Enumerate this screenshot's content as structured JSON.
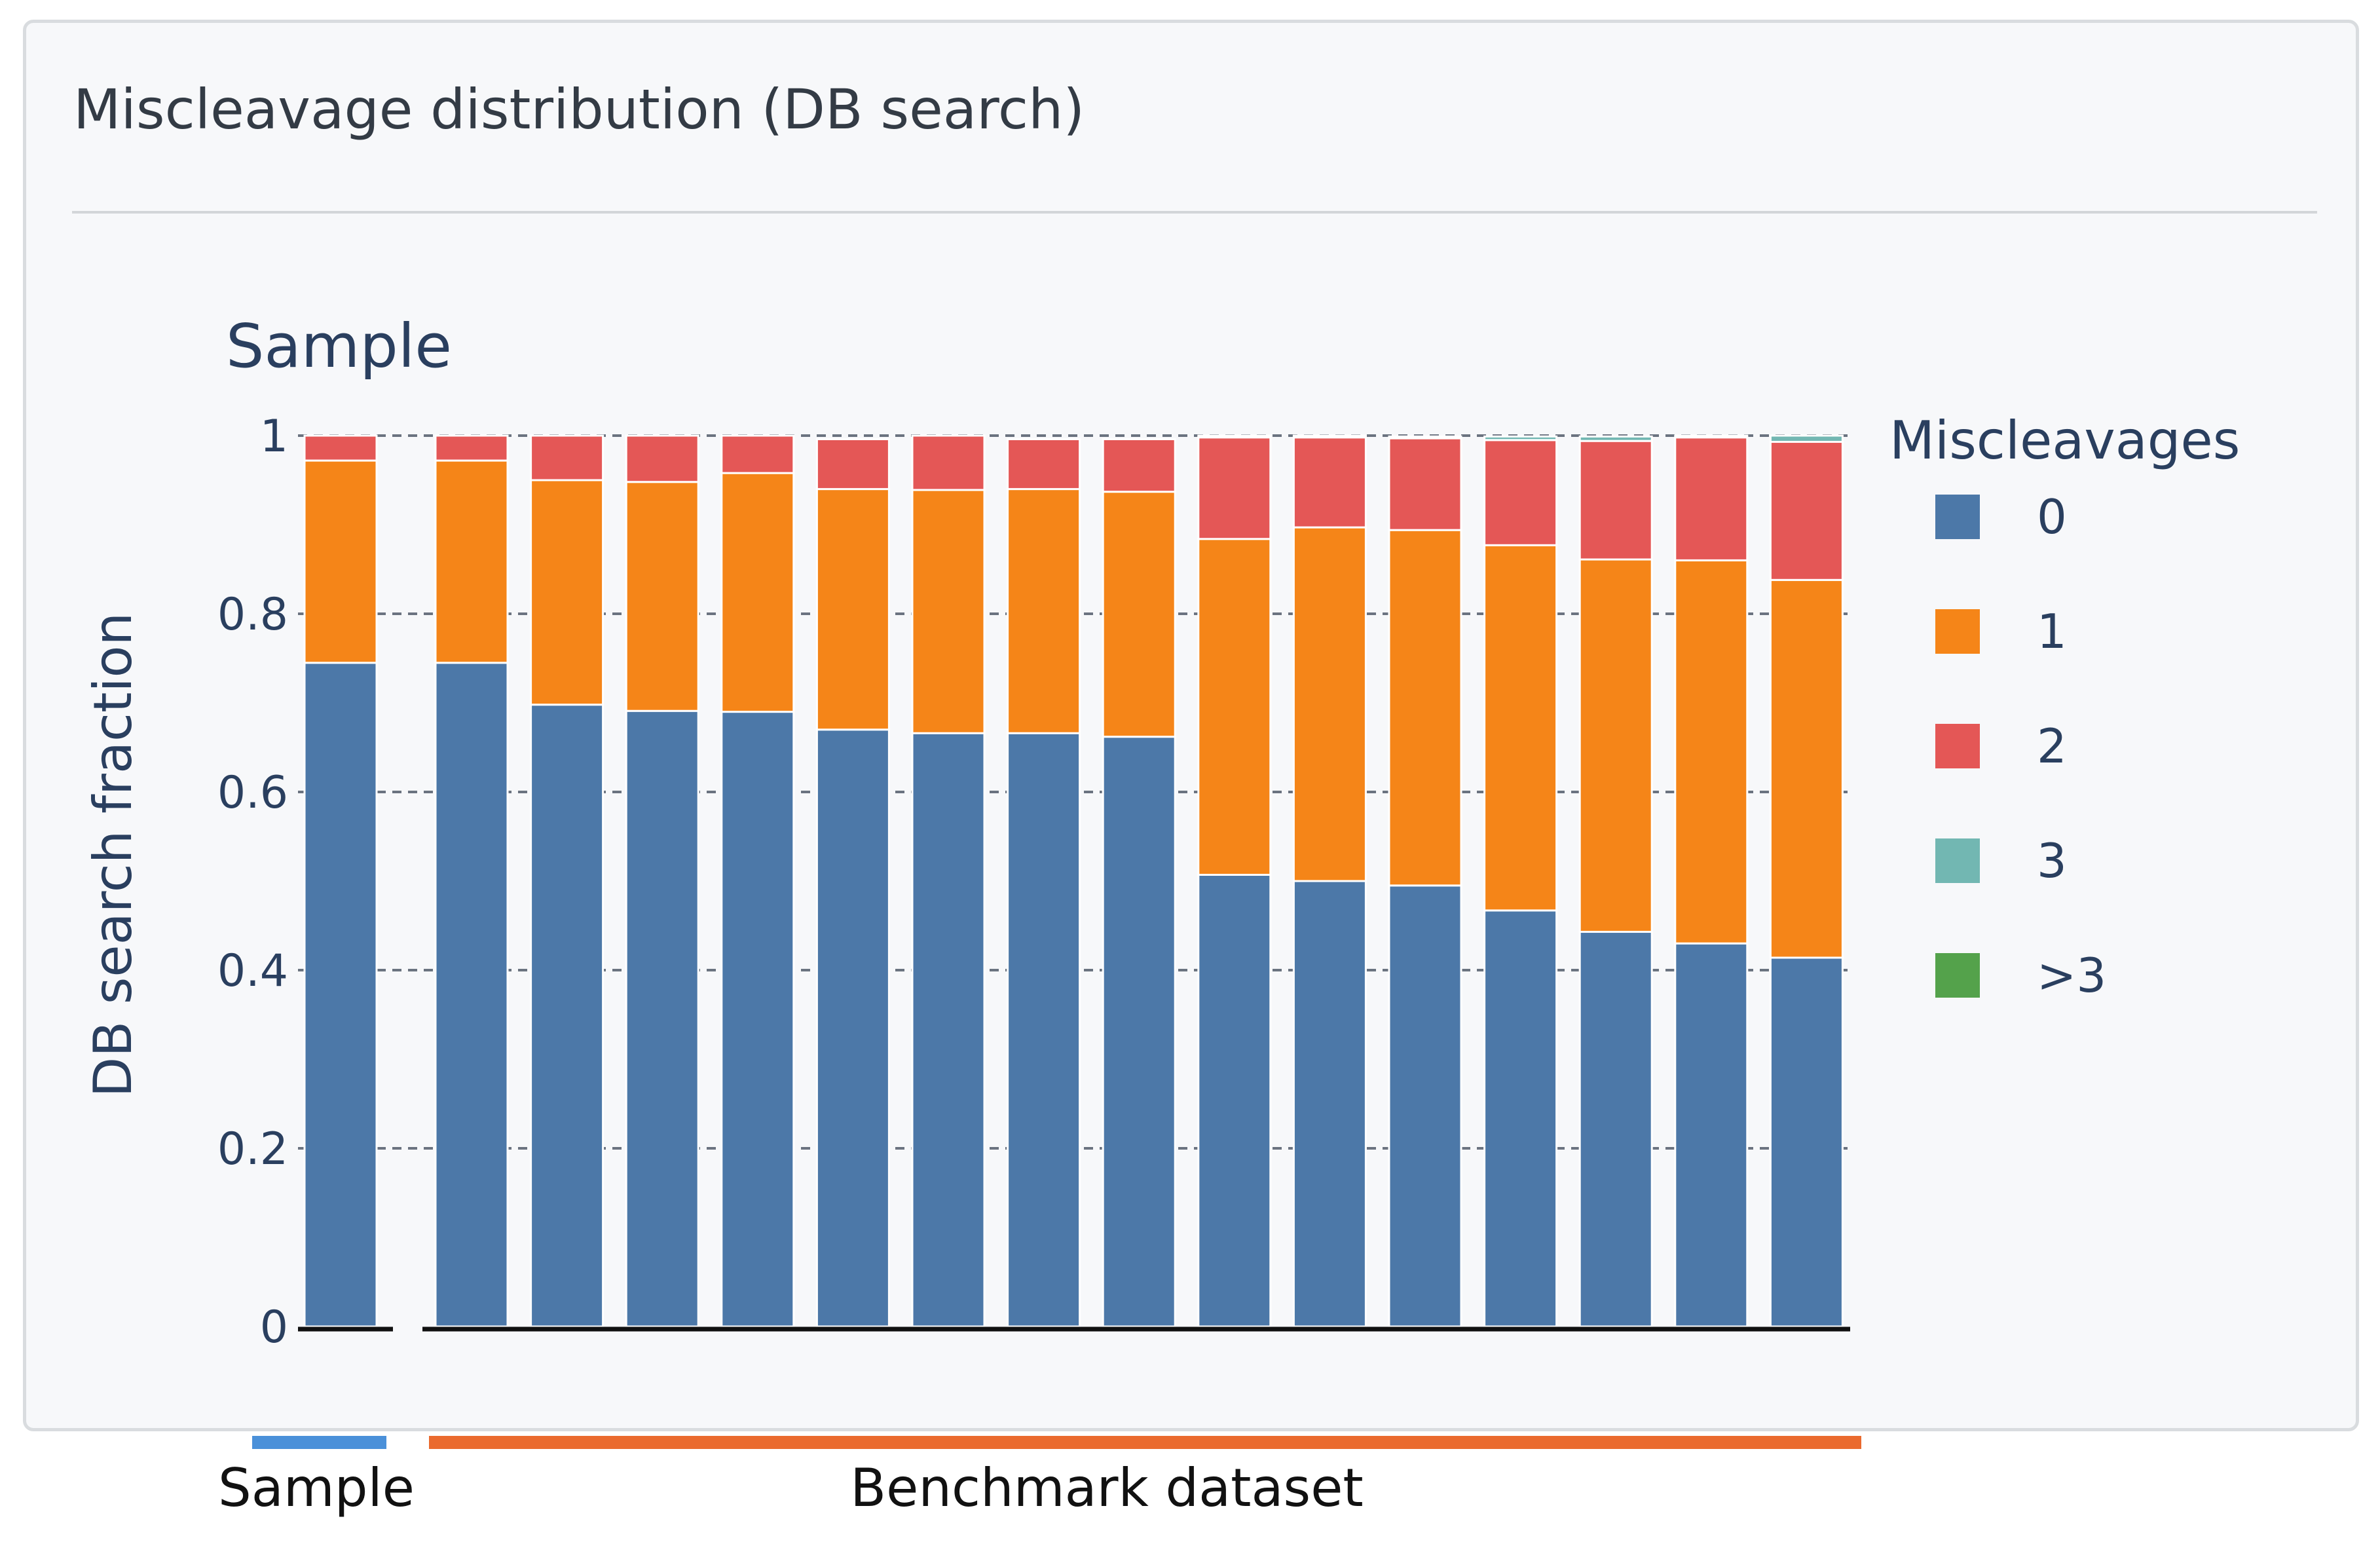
{
  "panel": {
    "title": "Miscleavage distribution (DB search)"
  },
  "chart_data": {
    "type": "bar",
    "stacked": true,
    "title": "Sample",
    "xlabel": "",
    "ylabel": "DB search fraction",
    "ylim": [
      0,
      1
    ],
    "yticks": [
      0,
      0.2,
      0.4,
      0.6,
      0.8,
      1
    ],
    "ytick_labels": [
      "0",
      "0.2",
      "0.4",
      "0.6",
      "0.8",
      "1"
    ],
    "grid": true,
    "legend": {
      "title": "Miscleavages",
      "placement": "right"
    },
    "series": [
      {
        "name": "0",
        "color": "#4c78a8",
        "values": [
          0.745,
          0.745,
          0.698,
          0.691,
          0.69,
          0.67,
          0.666,
          0.666,
          0.662,
          0.507,
          0.5,
          0.495,
          0.467,
          0.443,
          0.43,
          0.414
        ]
      },
      {
        "name": "1",
        "color": "#f58518",
        "values": [
          0.227,
          0.227,
          0.252,
          0.257,
          0.268,
          0.27,
          0.273,
          0.274,
          0.275,
          0.377,
          0.397,
          0.399,
          0.41,
          0.418,
          0.43,
          0.424
        ]
      },
      {
        "name": "2",
        "color": "#e45756",
        "values": [
          0.028,
          0.028,
          0.05,
          0.052,
          0.042,
          0.056,
          0.061,
          0.056,
          0.059,
          0.114,
          0.101,
          0.103,
          0.118,
          0.133,
          0.138,
          0.155
        ]
      },
      {
        "name": "3",
        "color": "#72b7b2",
        "values": [
          0,
          0,
          0,
          0,
          0,
          0,
          0,
          0,
          0,
          0.002,
          0.002,
          0.002,
          0.004,
          0.005,
          0.002,
          0.007
        ]
      },
      {
        "name": ">3",
        "color": "#54a24b",
        "values": [
          0,
          0,
          0,
          0,
          0,
          0,
          0,
          0,
          0,
          0,
          0,
          0,
          0,
          0,
          0,
          0
        ]
      }
    ],
    "groups": [
      {
        "label": "Sample",
        "count": 1,
        "color": "#4a90d9"
      },
      {
        "label": "Benchmark dataset",
        "count": 15,
        "color": "#ea6a2e"
      }
    ]
  }
}
